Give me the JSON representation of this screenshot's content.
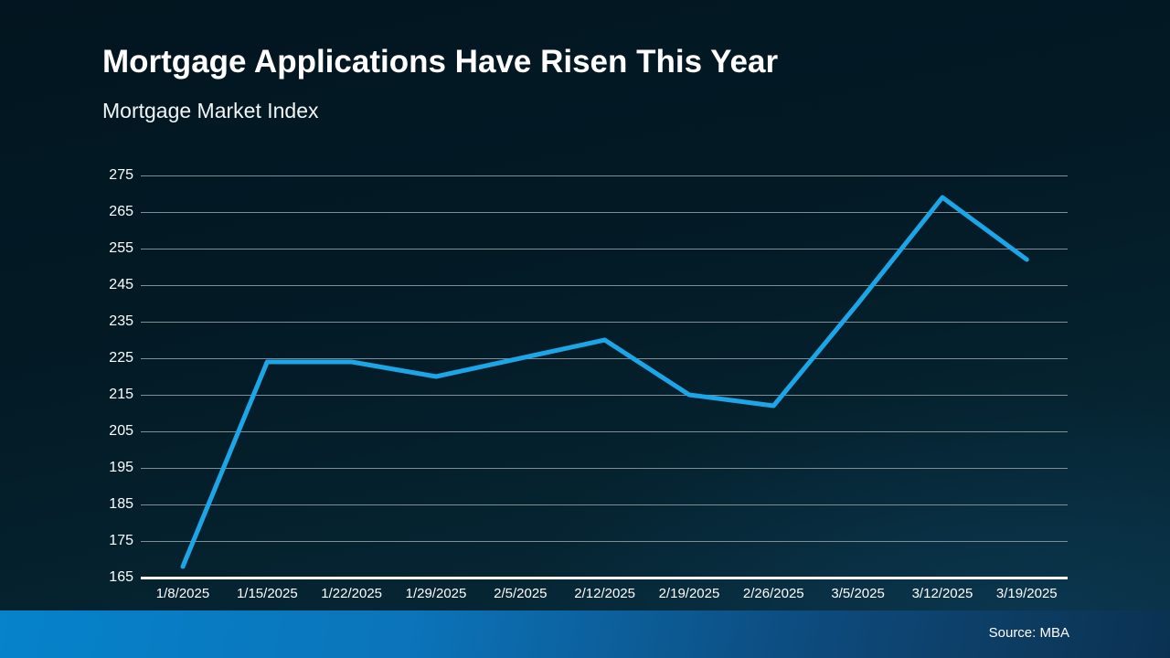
{
  "header": {
    "title": "Mortgage Applications Have Risen This Year",
    "subtitle": "Mortgage Market Index"
  },
  "footer": {
    "source_label": "Source: MBA"
  },
  "colors": {
    "background_top": "#021520",
    "background_bottom": "#07293a",
    "line": "#1ca6e8",
    "gridline": "#7f8d94",
    "axis_line": "#ffffff",
    "text": "#ffffff",
    "footer_bar_left": "#0583cb",
    "footer_bar_right": "#0a3152"
  },
  "chart_data": {
    "type": "line",
    "title": "Mortgage Applications Have Risen This Year",
    "subtitle": "Mortgage Market Index",
    "categories": [
      "1/8/2025",
      "1/15/2025",
      "1/22/2025",
      "1/29/2025",
      "2/5/2025",
      "2/12/2025",
      "2/19/2025",
      "2/26/2025",
      "3/5/2025",
      "3/12/2025",
      "3/19/2025"
    ],
    "series": [
      {
        "name": "Mortgage Market Index",
        "values": [
          168,
          224,
          224,
          220,
          225,
          230,
          215,
          212,
          240,
          269,
          252
        ]
      }
    ],
    "ylim": [
      165,
      275
    ],
    "yticks": [
      275,
      265,
      255,
      245,
      235,
      225,
      215,
      205,
      195,
      185,
      175,
      165
    ],
    "xlabel": "",
    "ylabel": "",
    "grid": "horizontal",
    "legend": "none"
  }
}
